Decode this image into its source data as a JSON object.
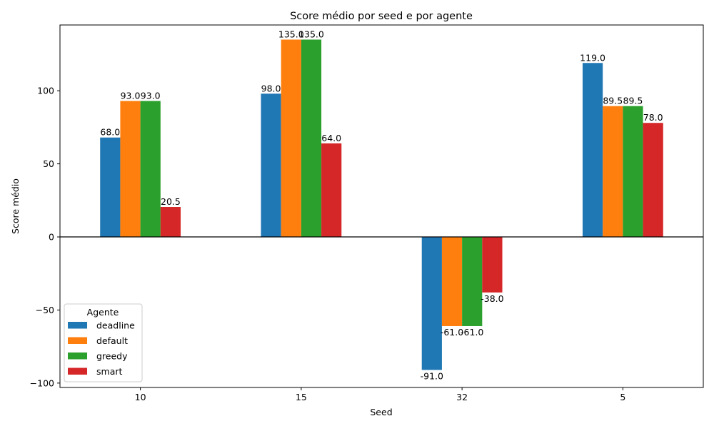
{
  "chart_data": {
    "type": "bar",
    "title": "Score médio por seed e por agente",
    "xlabel": "Seed",
    "ylabel": "Score médio",
    "categories": [
      "10",
      "15",
      "32",
      "5"
    ],
    "ylim": [
      -103,
      145
    ],
    "yticks": [
      -100,
      -50,
      0,
      50,
      100
    ],
    "ytick_labels": [
      "−100",
      "−50",
      "0",
      "50",
      "100"
    ],
    "grid": false,
    "legend": {
      "title": "Agente",
      "placement": "lower-left"
    },
    "series": [
      {
        "name": "deadline",
        "color": "#1f77b4",
        "values": [
          68.0,
          98.0,
          -91.0,
          119.0
        ],
        "labels": [
          "68.0",
          "98.0",
          "-91.0",
          "119.0"
        ]
      },
      {
        "name": "default",
        "color": "#ff7f0e",
        "values": [
          93.0,
          135.0,
          -61.0,
          89.5
        ],
        "labels": [
          "93.0",
          "135.0",
          "-61.0",
          "89.5"
        ]
      },
      {
        "name": "greedy",
        "color": "#2ca02c",
        "values": [
          93.0,
          135.0,
          -61.0,
          89.5
        ],
        "labels": [
          "93.0",
          "135.0",
          "-61.0",
          "89.5"
        ]
      },
      {
        "name": "smart",
        "color": "#d62728",
        "values": [
          20.5,
          64.0,
          -38.0,
          78.0
        ],
        "labels": [
          "20.5",
          "64.0",
          "-38.0",
          "78.0"
        ]
      }
    ]
  }
}
